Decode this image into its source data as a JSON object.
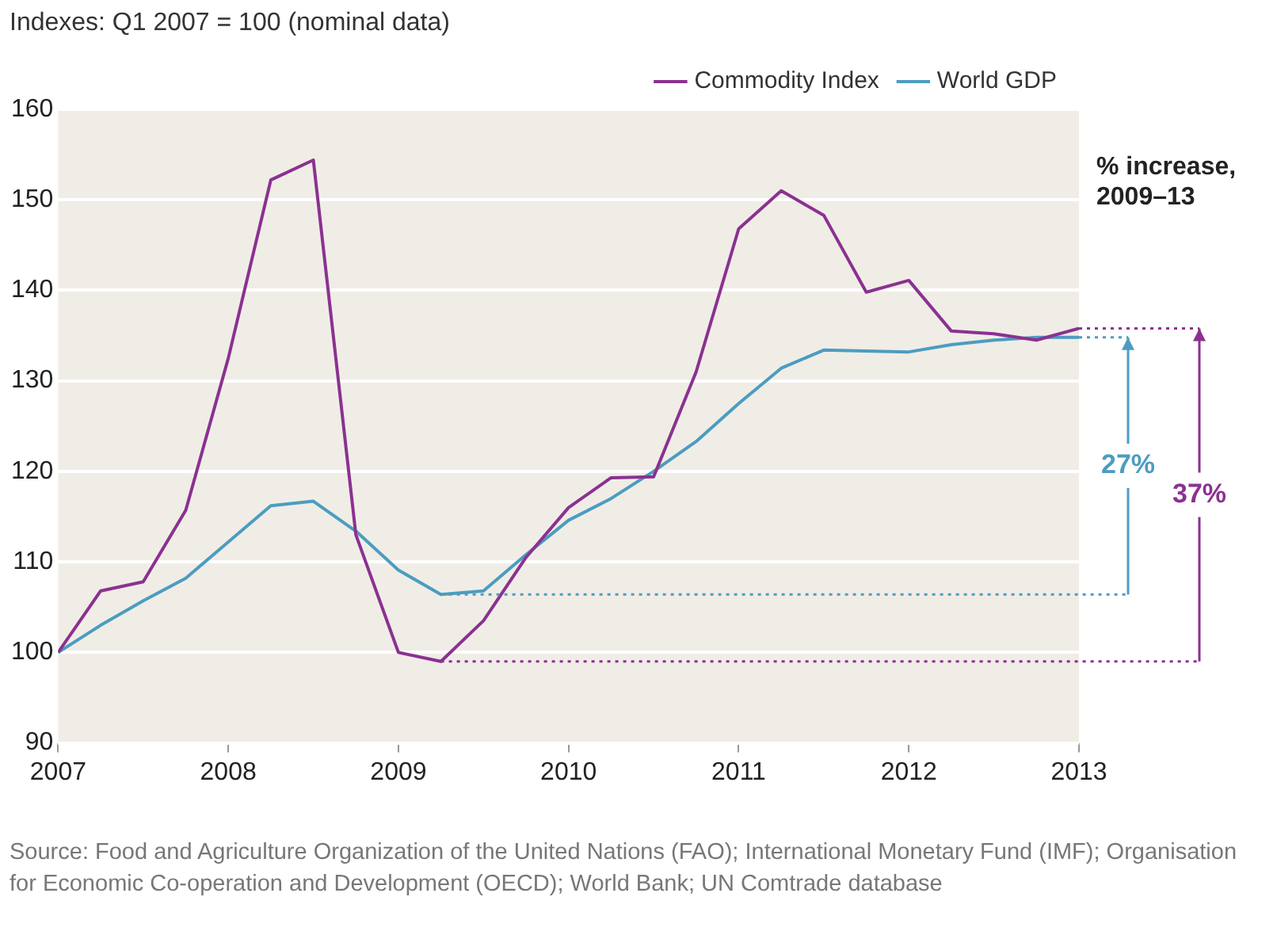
{
  "chart_data": {
    "type": "line",
    "title": "Indexes: Q1 2007 = 100 (nominal data)",
    "x": [
      2007,
      2007.25,
      2007.5,
      2007.75,
      2008,
      2008.25,
      2008.5,
      2008.75,
      2009,
      2009.25,
      2009.5,
      2009.75,
      2010,
      2010.25,
      2010.5,
      2010.75,
      2011,
      2011.25,
      2011.5,
      2011.75,
      2012,
      2012.25,
      2012.5,
      2012.75,
      2013
    ],
    "series": [
      {
        "name": "Commodity Index",
        "color": "#8b3191",
        "values": [
          100,
          106.8,
          107.8,
          115.7,
          132.5,
          152.2,
          154.4,
          113,
          100,
          99,
          103.5,
          110.5,
          116,
          119.3,
          119.4,
          131,
          146.8,
          151,
          148.3,
          139.8,
          141.1,
          135.5,
          135.2,
          134.5,
          135.8
        ]
      },
      {
        "name": "World GDP",
        "color": "#4c9cc1",
        "values": [
          100,
          103,
          105.7,
          108.2,
          112.2,
          116.2,
          116.7,
          113.4,
          109.1,
          106.4,
          106.8,
          110.8,
          114.6,
          117,
          120,
          123.3,
          127.5,
          131.4,
          133.4,
          133.3,
          133.2,
          134,
          134.5,
          134.8,
          134.8
        ]
      }
    ],
    "xlim": [
      2007,
      2013
    ],
    "xticks": [
      2007,
      2008,
      2009,
      2010,
      2011,
      2012,
      2013
    ],
    "ylim": [
      90,
      160
    ],
    "yticks": [
      90,
      100,
      110,
      120,
      130,
      140,
      150,
      160
    ],
    "grid": "y",
    "legend": "top right",
    "marker": "none",
    "line_style": "solid",
    "ref_lines": [
      {
        "axis": "y",
        "value": 99,
        "color": "#8b3191",
        "line_style": "dotted"
      },
      {
        "axis": "y",
        "value": 106.4,
        "color": "#4c9cc1",
        "line_style": "dotted"
      }
    ],
    "annotations": [
      "% increase, 2009–13",
      "37%",
      "27%",
      "Source: Food and Agriculture Organization of the United Nations (FAO); International Monetary Fund (IMF); Organisation for Economic Co-operation and Development (OECD); World Bank; UN Comtrade database"
    ]
  }
}
